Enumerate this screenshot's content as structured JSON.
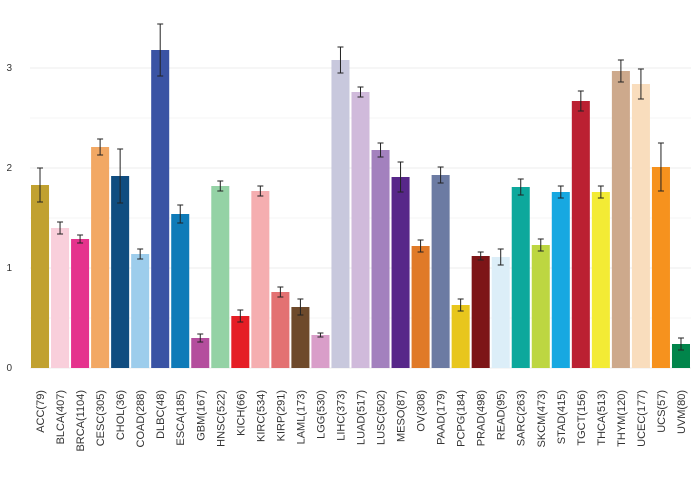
{
  "chart_data": {
    "type": "bar",
    "title": "",
    "xlabel": "",
    "ylabel": "",
    "ylim": [
      0,
      3.4
    ],
    "yticks": [
      0,
      1,
      2,
      3
    ],
    "grid": true,
    "categories": [
      "ACC(79)",
      "BLCA(407)",
      "BRCA(1104)",
      "CESC(305)",
      "CHOL(36)",
      "COAD(288)",
      "DLBC(48)",
      "ESCA(185)",
      "GBM(167)",
      "HNSC(522)",
      "KICH(66)",
      "KIRC(534)",
      "KIRP(291)",
      "LAML(173)",
      "LGG(530)",
      "LIHC(373)",
      "LUAD(517)",
      "LUSC(502)",
      "MESO(87)",
      "OV(308)",
      "PAAD(179)",
      "PCPG(184)",
      "PRAD(498)",
      "READ(95)",
      "SARC(263)",
      "SKCM(473)",
      "STAD(415)",
      "TGCT(156)",
      "THCA(513)",
      "THYM(120)",
      "UCEC(177)",
      "UCS(57)",
      "UVM(80)"
    ],
    "values": [
      1.83,
      1.4,
      1.29,
      2.21,
      1.92,
      1.14,
      3.18,
      1.54,
      0.3,
      1.82,
      0.52,
      1.77,
      0.76,
      0.61,
      0.33,
      3.08,
      2.76,
      2.18,
      1.91,
      1.22,
      1.93,
      0.63,
      1.12,
      1.11,
      1.81,
      1.23,
      1.76,
      2.67,
      1.76,
      2.97,
      2.84,
      2.01,
      0.24
    ],
    "errors": [
      0.17,
      0.06,
      0.04,
      0.08,
      0.27,
      0.05,
      0.26,
      0.09,
      0.04,
      0.05,
      0.06,
      0.05,
      0.05,
      0.08,
      0.02,
      0.13,
      0.05,
      0.07,
      0.15,
      0.06,
      0.08,
      0.06,
      0.04,
      0.08,
      0.08,
      0.06,
      0.06,
      0.1,
      0.06,
      0.11,
      0.15,
      0.24,
      0.06
    ],
    "colors": [
      "#C1A130",
      "#F9CFDB",
      "#E5338D",
      "#F2A864",
      "#104D80",
      "#9DCDEC",
      "#3A53A4",
      "#0F7BB8",
      "#B44E9D",
      "#94D2A5",
      "#E51E25",
      "#F5AEB0",
      "#E37172",
      "#6E4A2B",
      "#D99EC9",
      "#C8C8DD",
      "#D0BADB",
      "#A381BE",
      "#572789",
      "#E07A28",
      "#6C7BA3",
      "#E8C61D",
      "#7D1517",
      "#DCEEF8",
      "#0DA89C",
      "#BDD641",
      "#17A8E1",
      "#BB2032",
      "#F3EB35",
      "#CDA98C",
      "#F9DDBD",
      "#F6921E",
      "#01854B"
    ]
  }
}
